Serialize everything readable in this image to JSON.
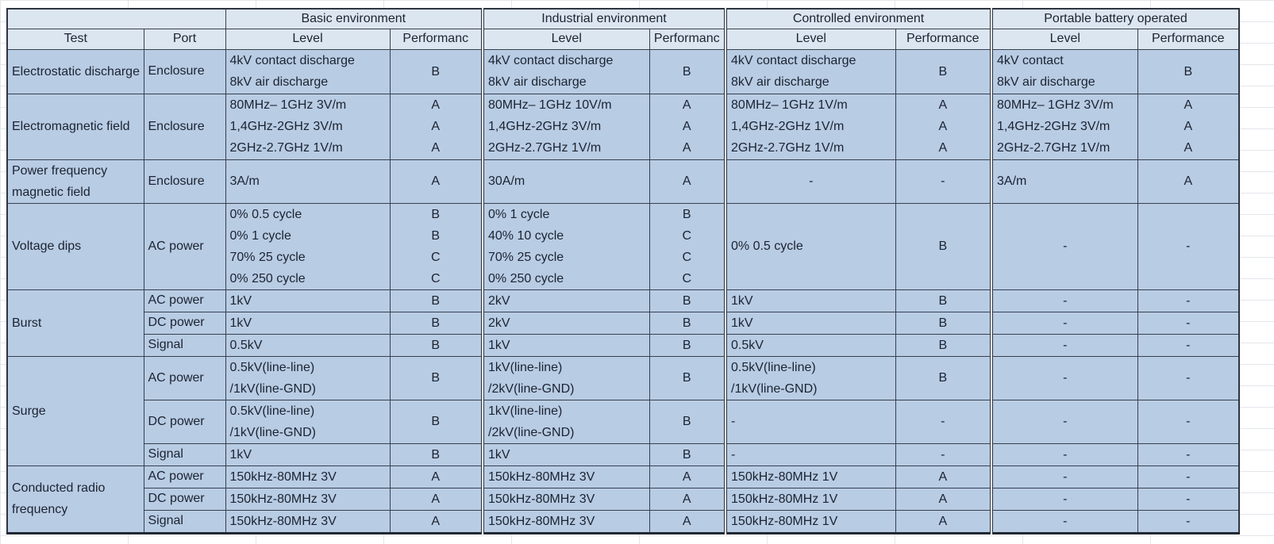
{
  "table": {
    "header": {
      "corner": "",
      "test": "Test",
      "port": "Port",
      "groups": [
        {
          "name": "Basic environment",
          "level": "Level",
          "performance": "Performanc"
        },
        {
          "name": "Industrial environment",
          "level": "Level",
          "performance": "Performanc"
        },
        {
          "name": "Controlled environment",
          "level": "Level",
          "performance": "Performance"
        },
        {
          "name": "Portable battery operated",
          "level": "Level",
          "performance": "Performance"
        }
      ]
    },
    "rows": [
      {
        "test": "Electrostatic discharge",
        "port": "Enclosure",
        "basic": {
          "level": [
            "4kV contact discharge",
            "8kV air discharge"
          ],
          "perf": [
            "B"
          ]
        },
        "industrial": {
          "level": [
            "4kV contact discharge",
            "8kV air discharge"
          ],
          "perf": [
            "B"
          ]
        },
        "controlled": {
          "level": [
            "4kV contact discharge",
            "8kV air discharge"
          ],
          "perf": [
            "B"
          ]
        },
        "portable": {
          "level": [
            "4kV contact",
            "8kV air discharge"
          ],
          "perf": [
            "B"
          ]
        }
      },
      {
        "test": "Electromagnetic field",
        "port": "Enclosure",
        "basic": {
          "level": [
            "80MHz– 1GHz 3V/m",
            "1,4GHz-2GHz 3V/m",
            "2GHz-2.7GHz 1V/m"
          ],
          "perf": [
            "A",
            "A",
            "A"
          ]
        },
        "industrial": {
          "level": [
            "80MHz– 1GHz 10V/m",
            "1,4GHz-2GHz 3V/m",
            "2GHz-2.7GHz 1V/m"
          ],
          "perf": [
            "A",
            "A",
            "A"
          ]
        },
        "controlled": {
          "level": [
            "80MHz– 1GHz 1V/m",
            "1,4GHz-2GHz 1V/m",
            "2GHz-2.7GHz 1V/m"
          ],
          "perf": [
            "A",
            "A",
            "A"
          ]
        },
        "portable": {
          "level": [
            "80MHz– 1GHz 3V/m",
            "1,4GHz-2GHz 3V/m",
            "2GHz-2.7GHz 1V/m"
          ],
          "perf": [
            "A",
            "A",
            "A"
          ]
        }
      },
      {
        "test": "Power frequency magnetic field",
        "port": "Enclosure",
        "basic": {
          "level": [
            "3A/m"
          ],
          "perf": [
            "A"
          ]
        },
        "industrial": {
          "level": [
            "30A/m"
          ],
          "perf": [
            "A"
          ]
        },
        "controlled": {
          "level": [
            "-"
          ],
          "perf": [
            "-"
          ]
        },
        "portable": {
          "level": [
            "3A/m"
          ],
          "perf": [
            "A"
          ]
        }
      },
      {
        "test": "Voltage dips",
        "port": "AC power",
        "basic": {
          "level": [
            "0% 0.5 cycle",
            "0% 1 cycle",
            "70% 25 cycle",
            "0% 250 cycle"
          ],
          "perf": [
            "B",
            "B",
            "C",
            "C"
          ]
        },
        "industrial": {
          "level": [
            "0% 1 cycle",
            "40% 10 cycle",
            "70% 25 cycle",
            "0% 250 cycle"
          ],
          "perf": [
            "B",
            "C",
            "C",
            "C"
          ]
        },
        "controlled": {
          "level": [
            "0% 0.5 cycle"
          ],
          "perf": [
            "B"
          ]
        },
        "portable": {
          "level": [
            "-"
          ],
          "perf": [
            "-"
          ]
        }
      },
      {
        "test": "Burst",
        "port": "AC power",
        "basic": {
          "level": [
            "1kV"
          ],
          "perf": [
            "B"
          ]
        },
        "industrial": {
          "level": [
            "2kV"
          ],
          "perf": [
            "B"
          ]
        },
        "controlled": {
          "level": [
            "1kV"
          ],
          "perf": [
            "B"
          ]
        },
        "portable": {
          "level": [
            "-"
          ],
          "perf": [
            "-"
          ]
        }
      },
      {
        "port": "DC power",
        "basic": {
          "level": [
            "1kV"
          ],
          "perf": [
            "B"
          ]
        },
        "industrial": {
          "level": [
            "2kV"
          ],
          "perf": [
            "B"
          ]
        },
        "controlled": {
          "level": [
            "1kV"
          ],
          "perf": [
            "B"
          ]
        },
        "portable": {
          "level": [
            "-"
          ],
          "perf": [
            "-"
          ]
        }
      },
      {
        "port": "Signal",
        "basic": {
          "level": [
            "0.5kV"
          ],
          "perf": [
            "B"
          ]
        },
        "industrial": {
          "level": [
            "1kV"
          ],
          "perf": [
            "B"
          ]
        },
        "controlled": {
          "level": [
            "0.5kV"
          ],
          "perf": [
            "B"
          ]
        },
        "portable": {
          "level": [
            "-"
          ],
          "perf": [
            "-"
          ]
        }
      },
      {
        "test": "Surge",
        "port": "AC power",
        "basic": {
          "level": [
            "0.5kV(line-line)",
            "/1kV(line-GND)"
          ],
          "perf": [
            "B"
          ]
        },
        "industrial": {
          "level": [
            "1kV(line-line)",
            "/2kV(line-GND)"
          ],
          "perf": [
            "B"
          ]
        },
        "controlled": {
          "level": [
            "0.5kV(line-line)",
            "/1kV(line-GND)"
          ],
          "perf": [
            "B"
          ]
        },
        "portable": {
          "level": [
            "-"
          ],
          "perf": [
            "-"
          ]
        }
      },
      {
        "port": "DC power",
        "basic": {
          "level": [
            "0.5kV(line-line)",
            "/1kV(line-GND)"
          ],
          "perf": [
            "B"
          ]
        },
        "industrial": {
          "level": [
            "1kV(line-line)",
            "/2kV(line-GND)"
          ],
          "perf": [
            "B"
          ]
        },
        "controlled": {
          "level": [
            "-"
          ],
          "perf": [
            "-"
          ]
        },
        "portable": {
          "level": [
            "-"
          ],
          "perf": [
            "-"
          ]
        }
      },
      {
        "port": "Signal",
        "basic": {
          "level": [
            "1kV"
          ],
          "perf": [
            "B"
          ]
        },
        "industrial": {
          "level": [
            "1kV"
          ],
          "perf": [
            "B"
          ]
        },
        "controlled": {
          "level": [
            "-"
          ],
          "perf": [
            "-"
          ]
        },
        "portable": {
          "level": [
            "-"
          ],
          "perf": [
            "-"
          ]
        }
      },
      {
        "test": "Conducted radio frequency",
        "port": "AC power",
        "basic": {
          "level": [
            "150kHz-80MHz 3V"
          ],
          "perf": [
            "A"
          ]
        },
        "industrial": {
          "level": [
            "150kHz-80MHz 3V"
          ],
          "perf": [
            "A"
          ]
        },
        "controlled": {
          "level": [
            "150kHz-80MHz 1V"
          ],
          "perf": [
            "A"
          ]
        },
        "portable": {
          "level": [
            "-"
          ],
          "perf": [
            "-"
          ]
        }
      },
      {
        "port": "DC power",
        "basic": {
          "level": [
            "150kHz-80MHz 3V"
          ],
          "perf": [
            "A"
          ]
        },
        "industrial": {
          "level": [
            "150kHz-80MHz 3V"
          ],
          "perf": [
            "A"
          ]
        },
        "controlled": {
          "level": [
            "150kHz-80MHz 1V"
          ],
          "perf": [
            "A"
          ]
        },
        "portable": {
          "level": [
            "-"
          ],
          "perf": [
            "-"
          ]
        }
      },
      {
        "port": "Signal",
        "basic": {
          "level": [
            "150kHz-80MHz 3V"
          ],
          "perf": [
            "A"
          ]
        },
        "industrial": {
          "level": [
            "150kHz-80MHz 3V"
          ],
          "perf": [
            "A"
          ]
        },
        "controlled": {
          "level": [
            "150kHz-80MHz 1V"
          ],
          "perf": [
            "A"
          ]
        },
        "portable": {
          "level": [
            "-"
          ],
          "perf": [
            "-"
          ]
        }
      }
    ],
    "colors": {
      "header_fill": "#dce6f1",
      "data_fill": "#b8cce4",
      "border": "#39404d"
    }
  }
}
